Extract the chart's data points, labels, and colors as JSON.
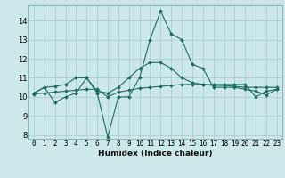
{
  "xlabel": "Humidex (Indice chaleur)",
  "xlim": [
    -0.5,
    23.5
  ],
  "ylim": [
    7.8,
    14.8
  ],
  "yticks": [
    8,
    9,
    10,
    11,
    12,
    13,
    14
  ],
  "xticks": [
    0,
    1,
    2,
    3,
    4,
    5,
    6,
    7,
    8,
    9,
    10,
    11,
    12,
    13,
    14,
    15,
    16,
    17,
    18,
    19,
    20,
    21,
    22,
    23
  ],
  "bg_color": "#cce8e8",
  "grid_color": "#aacfcf",
  "line_color": "#1e6e5e",
  "line1_x": [
    0,
    1,
    2,
    3,
    4,
    5,
    6,
    7,
    8,
    9,
    10,
    11,
    12,
    13,
    14,
    15,
    16,
    17,
    18,
    19,
    20,
    21,
    22,
    23
  ],
  "line1_y": [
    10.2,
    10.5,
    9.7,
    10.0,
    10.2,
    11.0,
    10.2,
    7.9,
    10.0,
    10.0,
    11.0,
    13.0,
    14.5,
    13.3,
    13.0,
    11.7,
    11.5,
    10.5,
    10.5,
    10.5,
    10.4,
    10.3,
    10.1,
    10.4
  ],
  "line2_x": [
    0,
    1,
    2,
    3,
    4,
    5,
    6,
    7,
    8,
    9,
    10,
    11,
    12,
    13,
    14,
    15,
    16,
    17,
    18,
    19,
    20,
    21,
    22,
    23
  ],
  "line2_y": [
    10.2,
    10.5,
    10.55,
    10.65,
    11.0,
    11.0,
    10.3,
    10.2,
    10.5,
    11.0,
    11.5,
    11.8,
    11.8,
    11.5,
    11.0,
    10.75,
    10.65,
    10.6,
    10.6,
    10.55,
    10.5,
    10.5,
    10.5,
    10.5
  ],
  "line3_x": [
    0,
    1,
    2,
    3,
    4,
    5,
    6,
    7,
    8,
    9,
    10,
    11,
    12,
    13,
    14,
    15,
    16,
    17,
    18,
    19,
    20,
    21,
    22,
    23
  ],
  "line3_y": [
    10.15,
    10.2,
    10.25,
    10.3,
    10.35,
    10.4,
    10.4,
    10.0,
    10.25,
    10.35,
    10.45,
    10.5,
    10.55,
    10.6,
    10.65,
    10.65,
    10.65,
    10.65,
    10.65,
    10.65,
    10.65,
    10.0,
    10.3,
    10.4
  ],
  "xlabel_fontsize": 6.5,
  "tick_fontsize": 5.5,
  "ytick_fontsize": 6.0
}
